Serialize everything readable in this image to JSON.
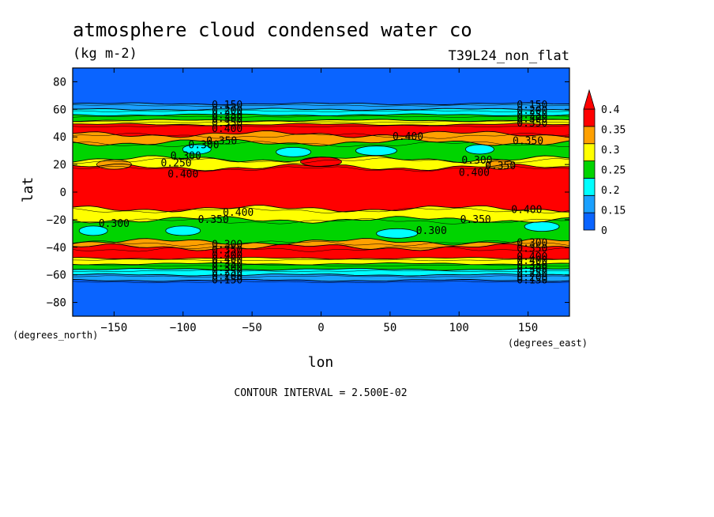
{
  "chart_data": {
    "type": "heatmap",
    "title": "atmosphere cloud condensed water co",
    "subtitle": "(kg m-2)",
    "dataset_label": "T39L24_non_flat",
    "xlabel": "lon",
    "ylabel": "lat",
    "x_units": "(degrees_east)",
    "y_units": "(degrees_north)",
    "xlim": [
      -180,
      180
    ],
    "ylim": [
      -90,
      90
    ],
    "x_ticks": [
      -150,
      -100,
      -50,
      0,
      50,
      100,
      150
    ],
    "y_ticks": [
      80,
      60,
      40,
      20,
      0,
      -20,
      -40,
      -60,
      -80
    ],
    "grid": false,
    "footer": "CONTOUR INTERVAL = 2.500E-02",
    "colorbar": {
      "placement": "right",
      "levels": [
        0,
        0.15,
        0.2,
        0.25,
        0.3,
        0.35,
        0.4
      ],
      "tick_labels": [
        "0",
        "0.15",
        "0.2",
        "0.25",
        "0.3",
        "0.35",
        "0.4"
      ],
      "colors": [
        "#0a64ff",
        "#1aa0ff",
        "#00ffff",
        "#00d400",
        "#ffff00",
        "#ffa000",
        "#ff0000"
      ],
      "extend_arrow_color": "#ff0000"
    },
    "bands": [
      {
        "lat_from": 90,
        "lat_to": 64,
        "value": 0.1
      },
      {
        "lat_from": 64,
        "lat_to": 60,
        "value": 0.17
      },
      {
        "lat_from": 60,
        "lat_to": 56,
        "value": 0.2
      },
      {
        "lat_from": 56,
        "lat_to": 52,
        "value": 0.27
      },
      {
        "lat_from": 52,
        "lat_to": 49,
        "value": 0.33
      },
      {
        "lat_from": 49,
        "lat_to": 42,
        "value": 0.42
      },
      {
        "lat_from": 42,
        "lat_to": 36,
        "value": 0.37
      },
      {
        "lat_from": 36,
        "lat_to": 24,
        "value": 0.27
      },
      {
        "lat_from": 24,
        "lat_to": 18,
        "value": 0.32
      },
      {
        "lat_from": 18,
        "lat_to": -12,
        "value": 0.45
      },
      {
        "lat_from": -12,
        "lat_to": -20,
        "value": 0.32
      },
      {
        "lat_from": -20,
        "lat_to": -36,
        "value": 0.27
      },
      {
        "lat_from": -36,
        "lat_to": -40,
        "value": 0.37
      },
      {
        "lat_from": -40,
        "lat_to": -48,
        "value": 0.42
      },
      {
        "lat_from": -48,
        "lat_to": -52,
        "value": 0.33
      },
      {
        "lat_from": -52,
        "lat_to": -56,
        "value": 0.27
      },
      {
        "lat_from": -56,
        "lat_to": -60,
        "value": 0.2
      },
      {
        "lat_from": -60,
        "lat_to": -64,
        "value": 0.17
      },
      {
        "lat_from": -64,
        "lat_to": -90,
        "value": 0.1
      }
    ],
    "patches": [
      {
        "lon": -90,
        "lat": 31,
        "value": 0.2
      },
      {
        "lon": -20,
        "lat": 29,
        "value": 0.2
      },
      {
        "lon": 40,
        "lat": 30,
        "value": 0.2
      },
      {
        "lon": 115,
        "lat": 31,
        "value": 0.2
      },
      {
        "lon": -100,
        "lat": -28,
        "value": 0.2
      },
      {
        "lon": 55,
        "lat": -30,
        "value": 0.2
      },
      {
        "lon": -165,
        "lat": -28,
        "value": 0.2
      },
      {
        "lon": 160,
        "lat": -25,
        "value": 0.2
      },
      {
        "lon": 0,
        "lat": 22,
        "value": 0.45
      },
      {
        "lon": 130,
        "lat": 20,
        "value": 0.35
      },
      {
        "lon": -150,
        "lat": 20,
        "value": 0.35
      }
    ],
    "contour_labels": [
      {
        "text": "0.150",
        "lon": -68,
        "lat": 63
      },
      {
        "text": "0.200",
        "lon": -68,
        "lat": 59
      },
      {
        "text": "0.250",
        "lon": -68,
        "lat": 56
      },
      {
        "text": "0.300",
        "lon": -68,
        "lat": 53
      },
      {
        "text": "0.350",
        "lon": -68,
        "lat": 50
      },
      {
        "text": "0.400",
        "lon": -68,
        "lat": 46
      },
      {
        "text": "0.150",
        "lon": 153,
        "lat": 63
      },
      {
        "text": "0.200",
        "lon": 153,
        "lat": 59
      },
      {
        "text": "0.250",
        "lon": 153,
        "lat": 56
      },
      {
        "text": "0.300",
        "lon": 153,
        "lat": 53
      },
      {
        "text": "0.350",
        "lon": 153,
        "lat": 50
      },
      {
        "text": "0.400",
        "lon": 63,
        "lat": 40
      },
      {
        "text": "0.350",
        "lon": -72,
        "lat": 37
      },
      {
        "text": "0.300",
        "lon": -85,
        "lat": 34
      },
      {
        "text": "0.350",
        "lon": 150,
        "lat": 37
      },
      {
        "text": "0.300",
        "lon": 113,
        "lat": 23
      },
      {
        "text": "0.350",
        "lon": 130,
        "lat": 19
      },
      {
        "text": "0.400",
        "lon": 111,
        "lat": 14
      },
      {
        "text": "0.300",
        "lon": -98,
        "lat": 26
      },
      {
        "text": "0.250",
        "lon": -105,
        "lat": 21
      },
      {
        "text": "0.400",
        "lon": -100,
        "lat": 13
      },
      {
        "text": "0.400",
        "lon": -60,
        "lat": -15
      },
      {
        "text": "0.350",
        "lon": -78,
        "lat": -20
      },
      {
        "text": "0.300",
        "lon": -150,
        "lat": -23
      },
      {
        "text": "0.300",
        "lon": 80,
        "lat": -28
      },
      {
        "text": "0.350",
        "lon": 112,
        "lat": -20
      },
      {
        "text": "0.400",
        "lon": 149,
        "lat": -13
      },
      {
        "text": "0.300",
        "lon": -68,
        "lat": -38
      },
      {
        "text": "0.350",
        "lon": -68,
        "lat": -42
      },
      {
        "text": "0.400",
        "lon": -68,
        "lat": -46
      },
      {
        "text": "0.300",
        "lon": 153,
        "lat": -37
      },
      {
        "text": "0.350",
        "lon": 153,
        "lat": -41
      },
      {
        "text": "0.400",
        "lon": 153,
        "lat": -47
      },
      {
        "text": "0.400",
        "lon": -68,
        "lat": -49
      },
      {
        "text": "0.350",
        "lon": -68,
        "lat": -52
      },
      {
        "text": "0.300",
        "lon": -68,
        "lat": -55
      },
      {
        "text": "0.250",
        "lon": -68,
        "lat": -58
      },
      {
        "text": "0.200",
        "lon": -68,
        "lat": -61
      },
      {
        "text": "0.150",
        "lon": -68,
        "lat": -64
      },
      {
        "text": "0.400",
        "lon": 153,
        "lat": -50
      },
      {
        "text": "0.350",
        "lon": 153,
        "lat": -53
      },
      {
        "text": "0.300",
        "lon": 153,
        "lat": -56
      },
      {
        "text": "0.250",
        "lon": 153,
        "lat": -59
      },
      {
        "text": "0.200",
        "lon": 153,
        "lat": -62
      },
      {
        "text": "0.150",
        "lon": 153,
        "lat": -64
      }
    ]
  }
}
